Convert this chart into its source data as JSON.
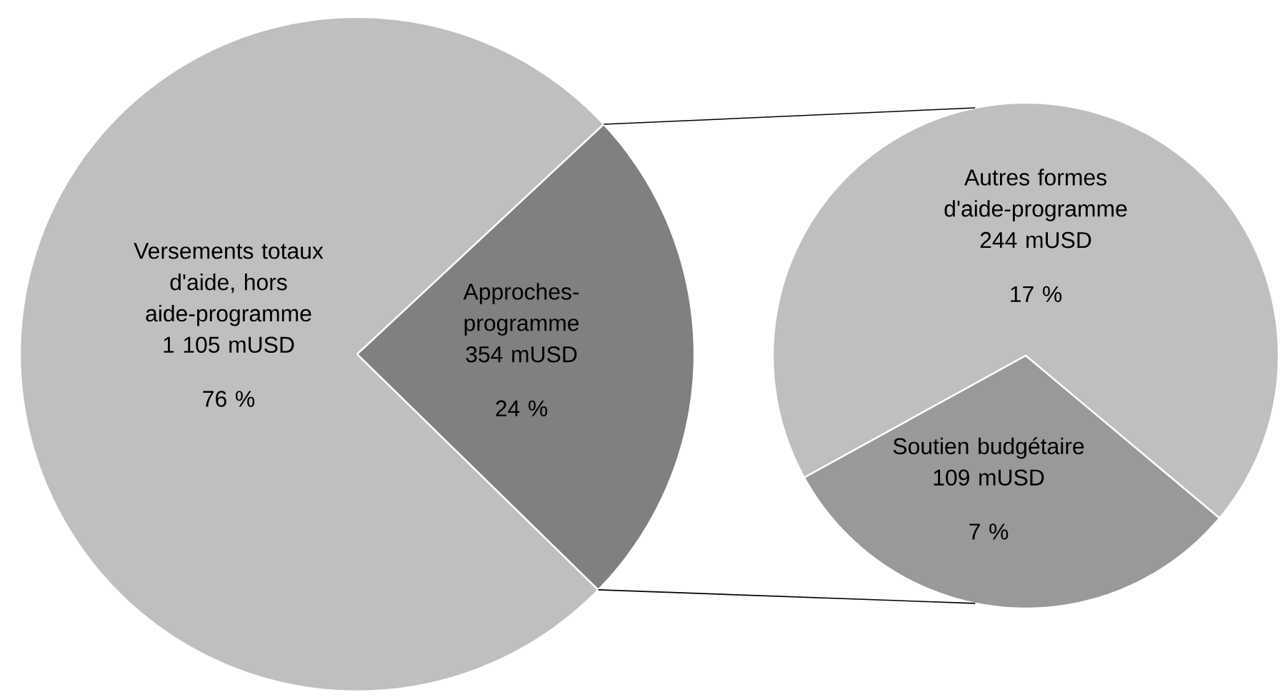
{
  "chart_data": [
    {
      "type": "pie",
      "categories": [
        "Versements totaux d'aide, hors aide-programme",
        "Approches-programme"
      ],
      "values": [
        1105,
        354
      ],
      "colors": [
        "#bfbfbf",
        "#808080"
      ],
      "value_labels": [
        "1 105 mUSD",
        "354 mUSD"
      ],
      "annotations": [
        "76 %",
        "24 %"
      ]
    },
    {
      "type": "pie",
      "categories": [
        "Autres formes d'aide-programme",
        "Soutien budgétaire"
      ],
      "values": [
        244,
        109
      ],
      "colors": [
        "#bfbfbf",
        "#999999"
      ],
      "value_labels": [
        "244 mUSD",
        "109 mUSD"
      ],
      "annotations": [
        "17 %",
        "7 %"
      ]
    }
  ]
}
